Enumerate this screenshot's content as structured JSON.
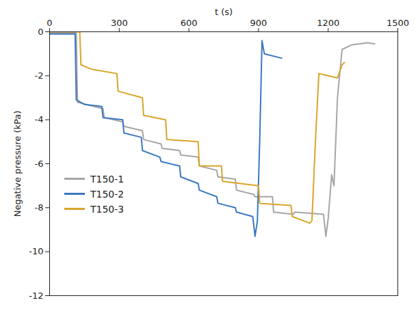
{
  "chart_data": {
    "type": "line",
    "x_label": "t (s)",
    "y_label": "Negative pressure (kPa)",
    "xlim": [
      0,
      1500
    ],
    "xticks": [
      0,
      300,
      600,
      900,
      1200,
      1500
    ],
    "ylim": [
      -12,
      0
    ],
    "yticks": [
      -12,
      -10,
      -8,
      -6,
      -4,
      -2,
      0
    ],
    "legend": "lower left",
    "series": [
      {
        "name": "T150-1",
        "color": "#a9a4a4",
        "x": [
          0,
          115,
          120,
          230,
          235,
          315,
          320,
          400,
          405,
          480,
          485,
          560,
          565,
          640,
          645,
          720,
          725,
          800,
          805,
          880,
          885,
          960,
          965,
          1050,
          1055,
          1180,
          1190,
          1200,
          1215,
          1225,
          1240,
          1260,
          1300,
          1370,
          1400
        ],
        "values": [
          -0.05,
          -0.05,
          -3.2,
          -3.5,
          -3.9,
          -4.1,
          -4.3,
          -4.5,
          -4.9,
          -5.1,
          -5.3,
          -5.4,
          -5.6,
          -5.7,
          -6.1,
          -6.3,
          -6.6,
          -6.7,
          -7.2,
          -7.4,
          -7.5,
          -7.5,
          -8.2,
          -8.3,
          -8.2,
          -8.3,
          -9.3,
          -8.5,
          -6.5,
          -7.0,
          -3.0,
          -0.8,
          -0.6,
          -0.5,
          -0.55
        ]
      },
      {
        "name": "T150-2",
        "color": "#3a78c3",
        "x": [
          0,
          110,
          115,
          150,
          225,
          230,
          315,
          320,
          395,
          400,
          475,
          480,
          560,
          565,
          640,
          645,
          720,
          725,
          800,
          805,
          875,
          885,
          895,
          905,
          915,
          925,
          1000
        ],
        "values": [
          -0.1,
          -0.1,
          -3.1,
          -3.3,
          -3.4,
          -3.9,
          -4.0,
          -4.6,
          -4.8,
          -5.4,
          -5.7,
          -5.9,
          -6.1,
          -6.6,
          -6.9,
          -7.2,
          -7.5,
          -7.8,
          -8.0,
          -8.2,
          -8.4,
          -9.3,
          -8.6,
          -5.0,
          -0.4,
          -1.0,
          -1.2
        ]
      },
      {
        "name": "T150-3",
        "color": "#d9a52a",
        "x": [
          0,
          130,
          135,
          180,
          290,
          295,
          400,
          405,
          500,
          505,
          640,
          645,
          740,
          745,
          900,
          905,
          1040,
          1045,
          1120,
          1130,
          1145,
          1160,
          1200,
          1240,
          1260,
          1270
        ],
        "values": [
          0,
          0,
          -1.5,
          -1.7,
          -1.9,
          -2.7,
          -3.0,
          -3.8,
          -4.0,
          -4.9,
          -5.0,
          -6.1,
          -6.1,
          -6.8,
          -7.0,
          -7.8,
          -7.9,
          -8.4,
          -8.7,
          -8.6,
          -5.0,
          -1.9,
          -2.0,
          -2.1,
          -1.5,
          -1.4
        ]
      }
    ]
  }
}
